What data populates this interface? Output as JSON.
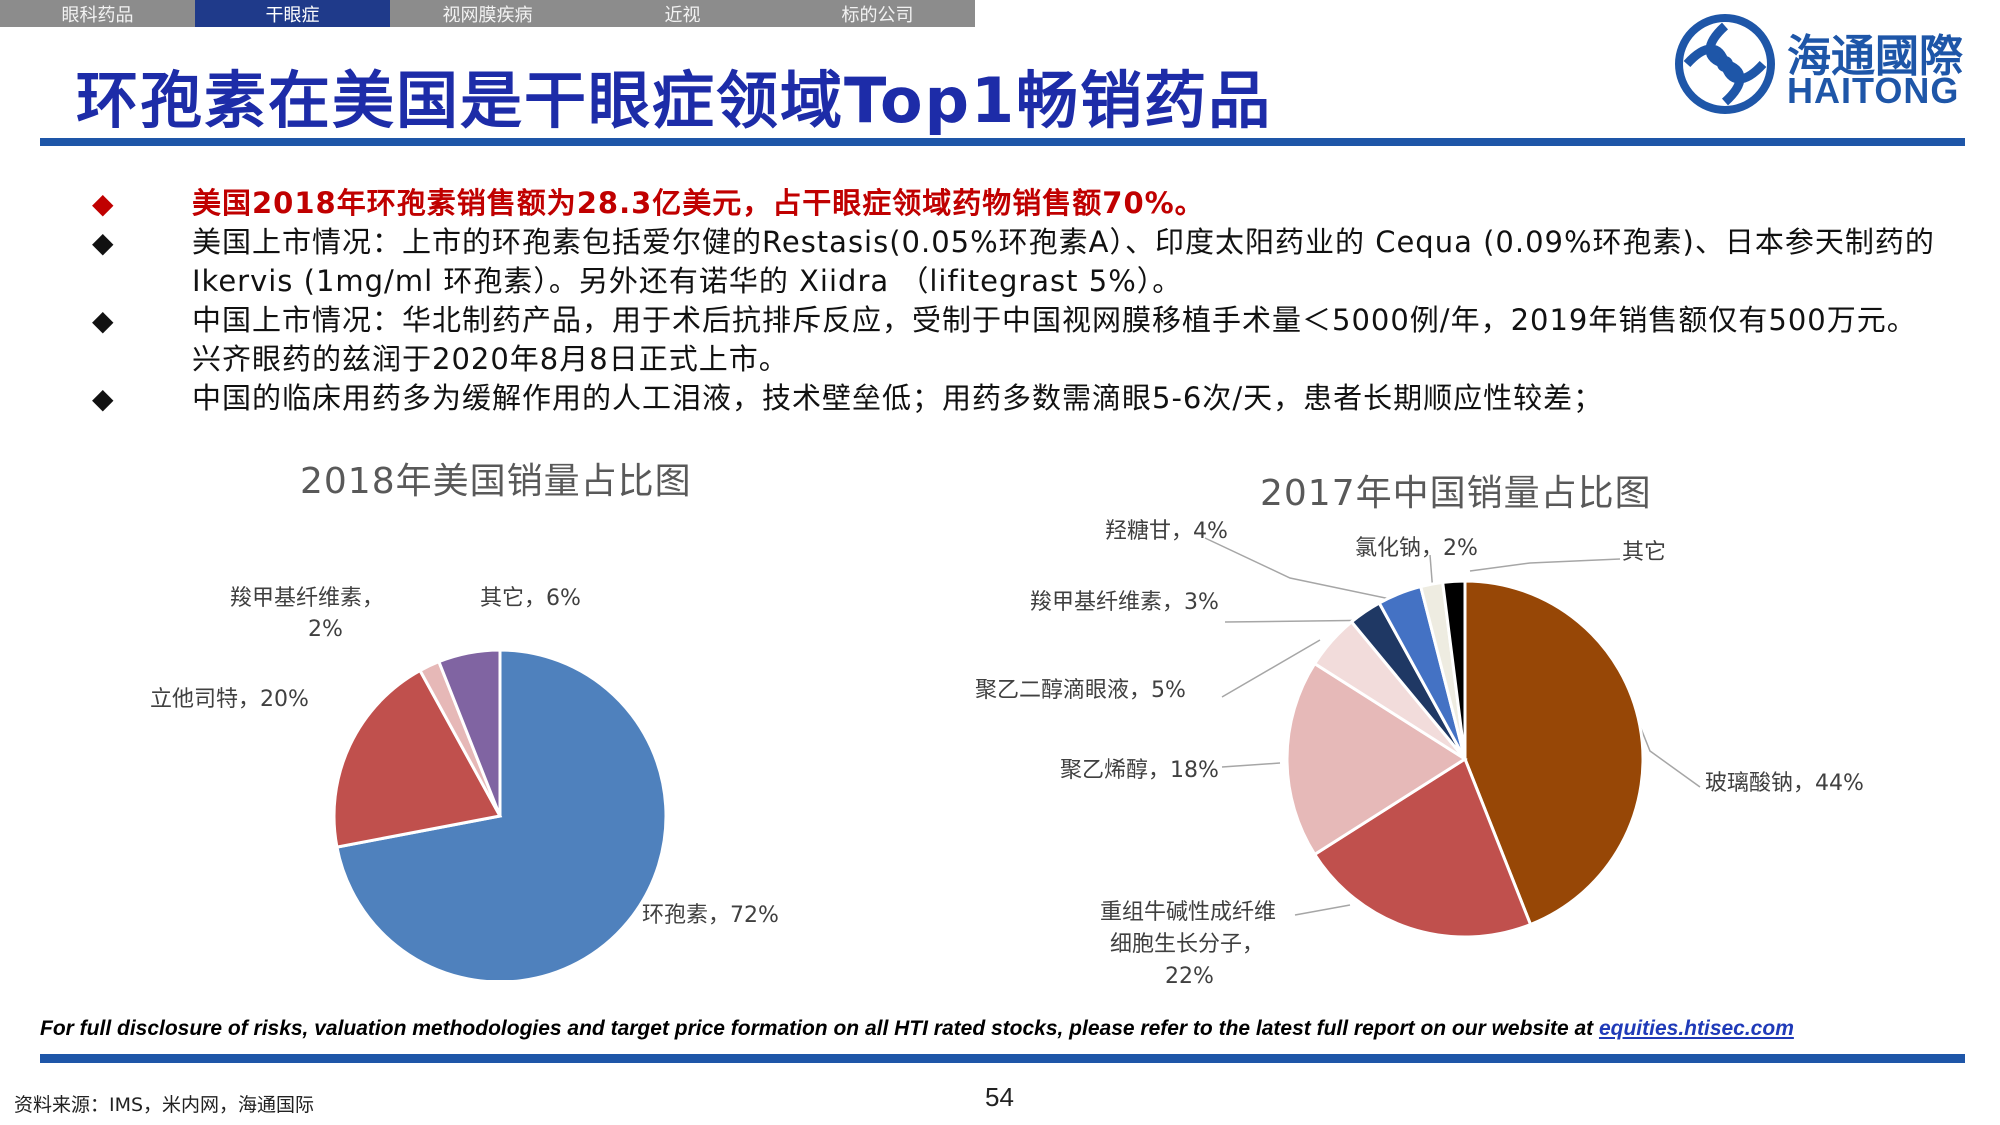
{
  "nav": {
    "tabs": [
      {
        "label": "眼科药品",
        "active": false
      },
      {
        "label": "干眼症",
        "active": true
      },
      {
        "label": "视网膜疾病",
        "active": false
      },
      {
        "label": "近视",
        "active": false
      },
      {
        "label": "标的公司",
        "active": false
      }
    ]
  },
  "header": {
    "title": "环孢素在美国是干眼症领域Top1畅销药品",
    "logo_cn": "海通國際",
    "logo_en": "HAITONG",
    "brand_color": "#1e56a8",
    "title_color": "#1d2ca8"
  },
  "bullets": [
    {
      "text": "美国2018年环孢素销售额为28.3亿美元，占干眼症领域药物销售额70%。",
      "highlight": true
    },
    {
      "text": "美国上市情况：上市的环孢素包括爱尔健的Restasis(0.05%环孢素A）、印度太阳药业的 Cequa (0.09%环孢素)、日本参天制药的 Ikervis (1mg/ml 环孢素）。另外还有诺华的 Xiidra （lifitegrast 5%）。",
      "highlight": false
    },
    {
      "text": "中国上市情况：华北制药产品，用于术后抗排斥反应，受制于中国视网膜移植手术量＜5000例/年，2019年销售额仅有500万元。兴齐眼药的兹润于2020年8月8日正式上市。",
      "highlight": false
    },
    {
      "text": "中国的临床用药多为缓解作用的人工泪液，技术壁垒低；用药多数需滴眼5-6次/天，患者长期顺应性较差；",
      "highlight": false
    }
  ],
  "bullet_marker": "◆",
  "chart_data": [
    {
      "type": "pie",
      "title": "2018年美国销量占比图",
      "start": "12 o'clock",
      "direction": "clockwise",
      "labels_shown": [
        "环孢素，72%",
        "立他司特，20%",
        "羧甲基纤维素，",
        "2%",
        "其它，6%"
      ],
      "slices": [
        {
          "name": "环孢素",
          "value": 72,
          "color": "#4f81bd"
        },
        {
          "name": "立他司特",
          "value": 20,
          "color": "#c0504d"
        },
        {
          "name": "羧甲基纤维素",
          "value": 2,
          "color": "#e6b8b7"
        },
        {
          "name": "其它",
          "value": 6,
          "color": "#8064a2"
        }
      ]
    },
    {
      "type": "pie",
      "title": "2017年中国销量占比图",
      "start": "12 o'clock",
      "direction": "clockwise",
      "labels_shown": [
        "玻璃酸钠，44%",
        "重组牛碱性成纤维",
        "细胞生长分子，",
        "22%",
        "聚乙烯醇，18%",
        "聚乙二醇滴眼液，5%",
        "羧甲基纤维素，3%",
        "羟糖甘，4%",
        "氯化钠，2%",
        "其它"
      ],
      "slices": [
        {
          "name": "玻璃酸钠",
          "value": 44,
          "color": "#974706"
        },
        {
          "name": "重组牛碱性成纤维细胞生长分子",
          "value": 22,
          "color": "#c0504d"
        },
        {
          "name": "聚乙烯醇",
          "value": 18,
          "color": "#e6b9b8"
        },
        {
          "name": "聚乙二醇滴眼液",
          "value": 5,
          "color": "#f2dcdb"
        },
        {
          "name": "羧甲基纤维素",
          "value": 3,
          "color": "#1f3864"
        },
        {
          "name": "羟糖甘",
          "value": 4,
          "color": "#4472c4"
        },
        {
          "name": "氯化钠",
          "value": 2,
          "color": "#eeece1"
        },
        {
          "name": "其它",
          "value": 2,
          "color": "#000000"
        }
      ]
    }
  ],
  "footer": {
    "disclosure": "For full disclosure of risks, valuation methodologies and target price formation on all HTI rated stocks, please refer to the latest full report on our website at ",
    "link": "equities.htisec.com",
    "source": "资料来源：IMS，米内网，海通国际",
    "page": "54"
  }
}
